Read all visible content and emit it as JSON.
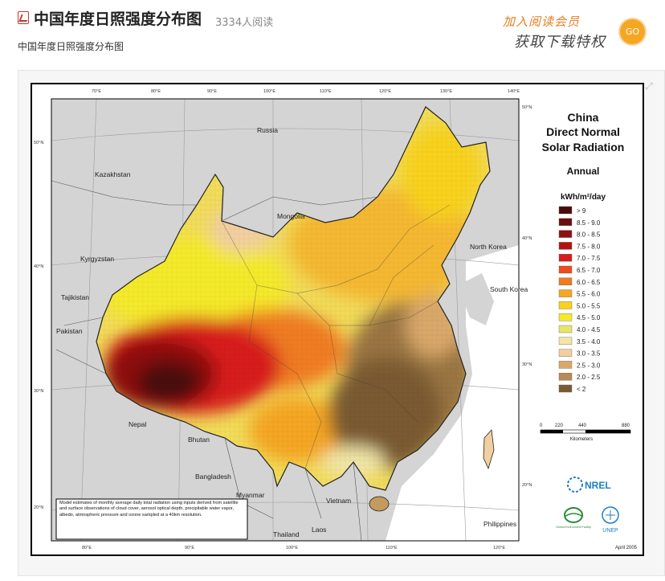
{
  "header": {
    "title": "中国年度日照强度分布图",
    "reads": "3334人阅读",
    "subtitle": "中国年度日照强度分布图",
    "promo_line1": "加入阅读会员",
    "promo_line2": "获取下载特权",
    "go_label": "GO"
  },
  "map": {
    "title_line1": "China",
    "title_line2": "Direct Normal",
    "title_line3": "Solar Radiation",
    "period": "Annual",
    "unit": "kWh/m²/day",
    "legend": [
      {
        "label": "> 9",
        "color": "#4a0a0a"
      },
      {
        "label": "8.5 - 9.0",
        "color": "#6e0d0d"
      },
      {
        "label": "8.0 - 8.5",
        "color": "#8e1010"
      },
      {
        "label": "7.5 - 8.0",
        "color": "#b31212"
      },
      {
        "label": "7.0 - 7.5",
        "color": "#d81b1b"
      },
      {
        "label": "6.5 - 7.0",
        "color": "#ee4b1f"
      },
      {
        "label": "6.0 - 6.5",
        "color": "#f07b20"
      },
      {
        "label": "5.5 - 6.0",
        "color": "#f5a623"
      },
      {
        "label": "5.0 - 5.5",
        "color": "#f8d21c"
      },
      {
        "label": "4.5 - 5.0",
        "color": "#f5ea2a"
      },
      {
        "label": "4.0 - 4.5",
        "color": "#e8e36a"
      },
      {
        "label": "3.5 - 4.0",
        "color": "#f1e6a8"
      },
      {
        "label": "3.0 - 3.5",
        "color": "#f2cfa0"
      },
      {
        "label": "2.5 - 3.0",
        "color": "#d9a86b"
      },
      {
        "label": "2.0 - 2.5",
        "color": "#b98a55"
      },
      {
        "label": "< 2",
        "color": "#7a5a33"
      }
    ],
    "scale_ticks": [
      "0",
      "220",
      "440",
      "880"
    ],
    "scale_unit": "Kilometers",
    "lon_top": [
      "70°E",
      "80°E",
      "90°E",
      "100°E",
      "110°E",
      "120°E",
      "130°E",
      "140°E"
    ],
    "lon_bottom": [
      "80°E",
      "90°E",
      "100°E",
      "110°E",
      "120°E"
    ],
    "lat_left": [
      "50°N",
      "40°N",
      "30°N",
      "20°N"
    ],
    "lat_right": [
      "50°N",
      "40°N",
      "30°N",
      "20°N"
    ],
    "countries": [
      "Russia",
      "Kazakhstan",
      "Mongolia",
      "Kyrgyzstan",
      "Tajikistan",
      "Pakistan",
      "Nepal",
      "Bhutan",
      "Bangladesh",
      "Myanmar",
      "Vietnam",
      "Laos",
      "Thailand",
      "Philippines",
      "North Korea",
      "South Korea"
    ],
    "note": "Model estimates of monthly average daily total radiation using inputs derived from satellite and surface observations of cloud cover, aerosol optical depth, precipitable water vapor, albedo, atmospheric pressure and ozone sampled at a 40km resolution.",
    "logo_nrel": "NREL",
    "logo_gef": "Global Environment Facility",
    "logo_unep": "UNEP",
    "date": "April 2005"
  }
}
